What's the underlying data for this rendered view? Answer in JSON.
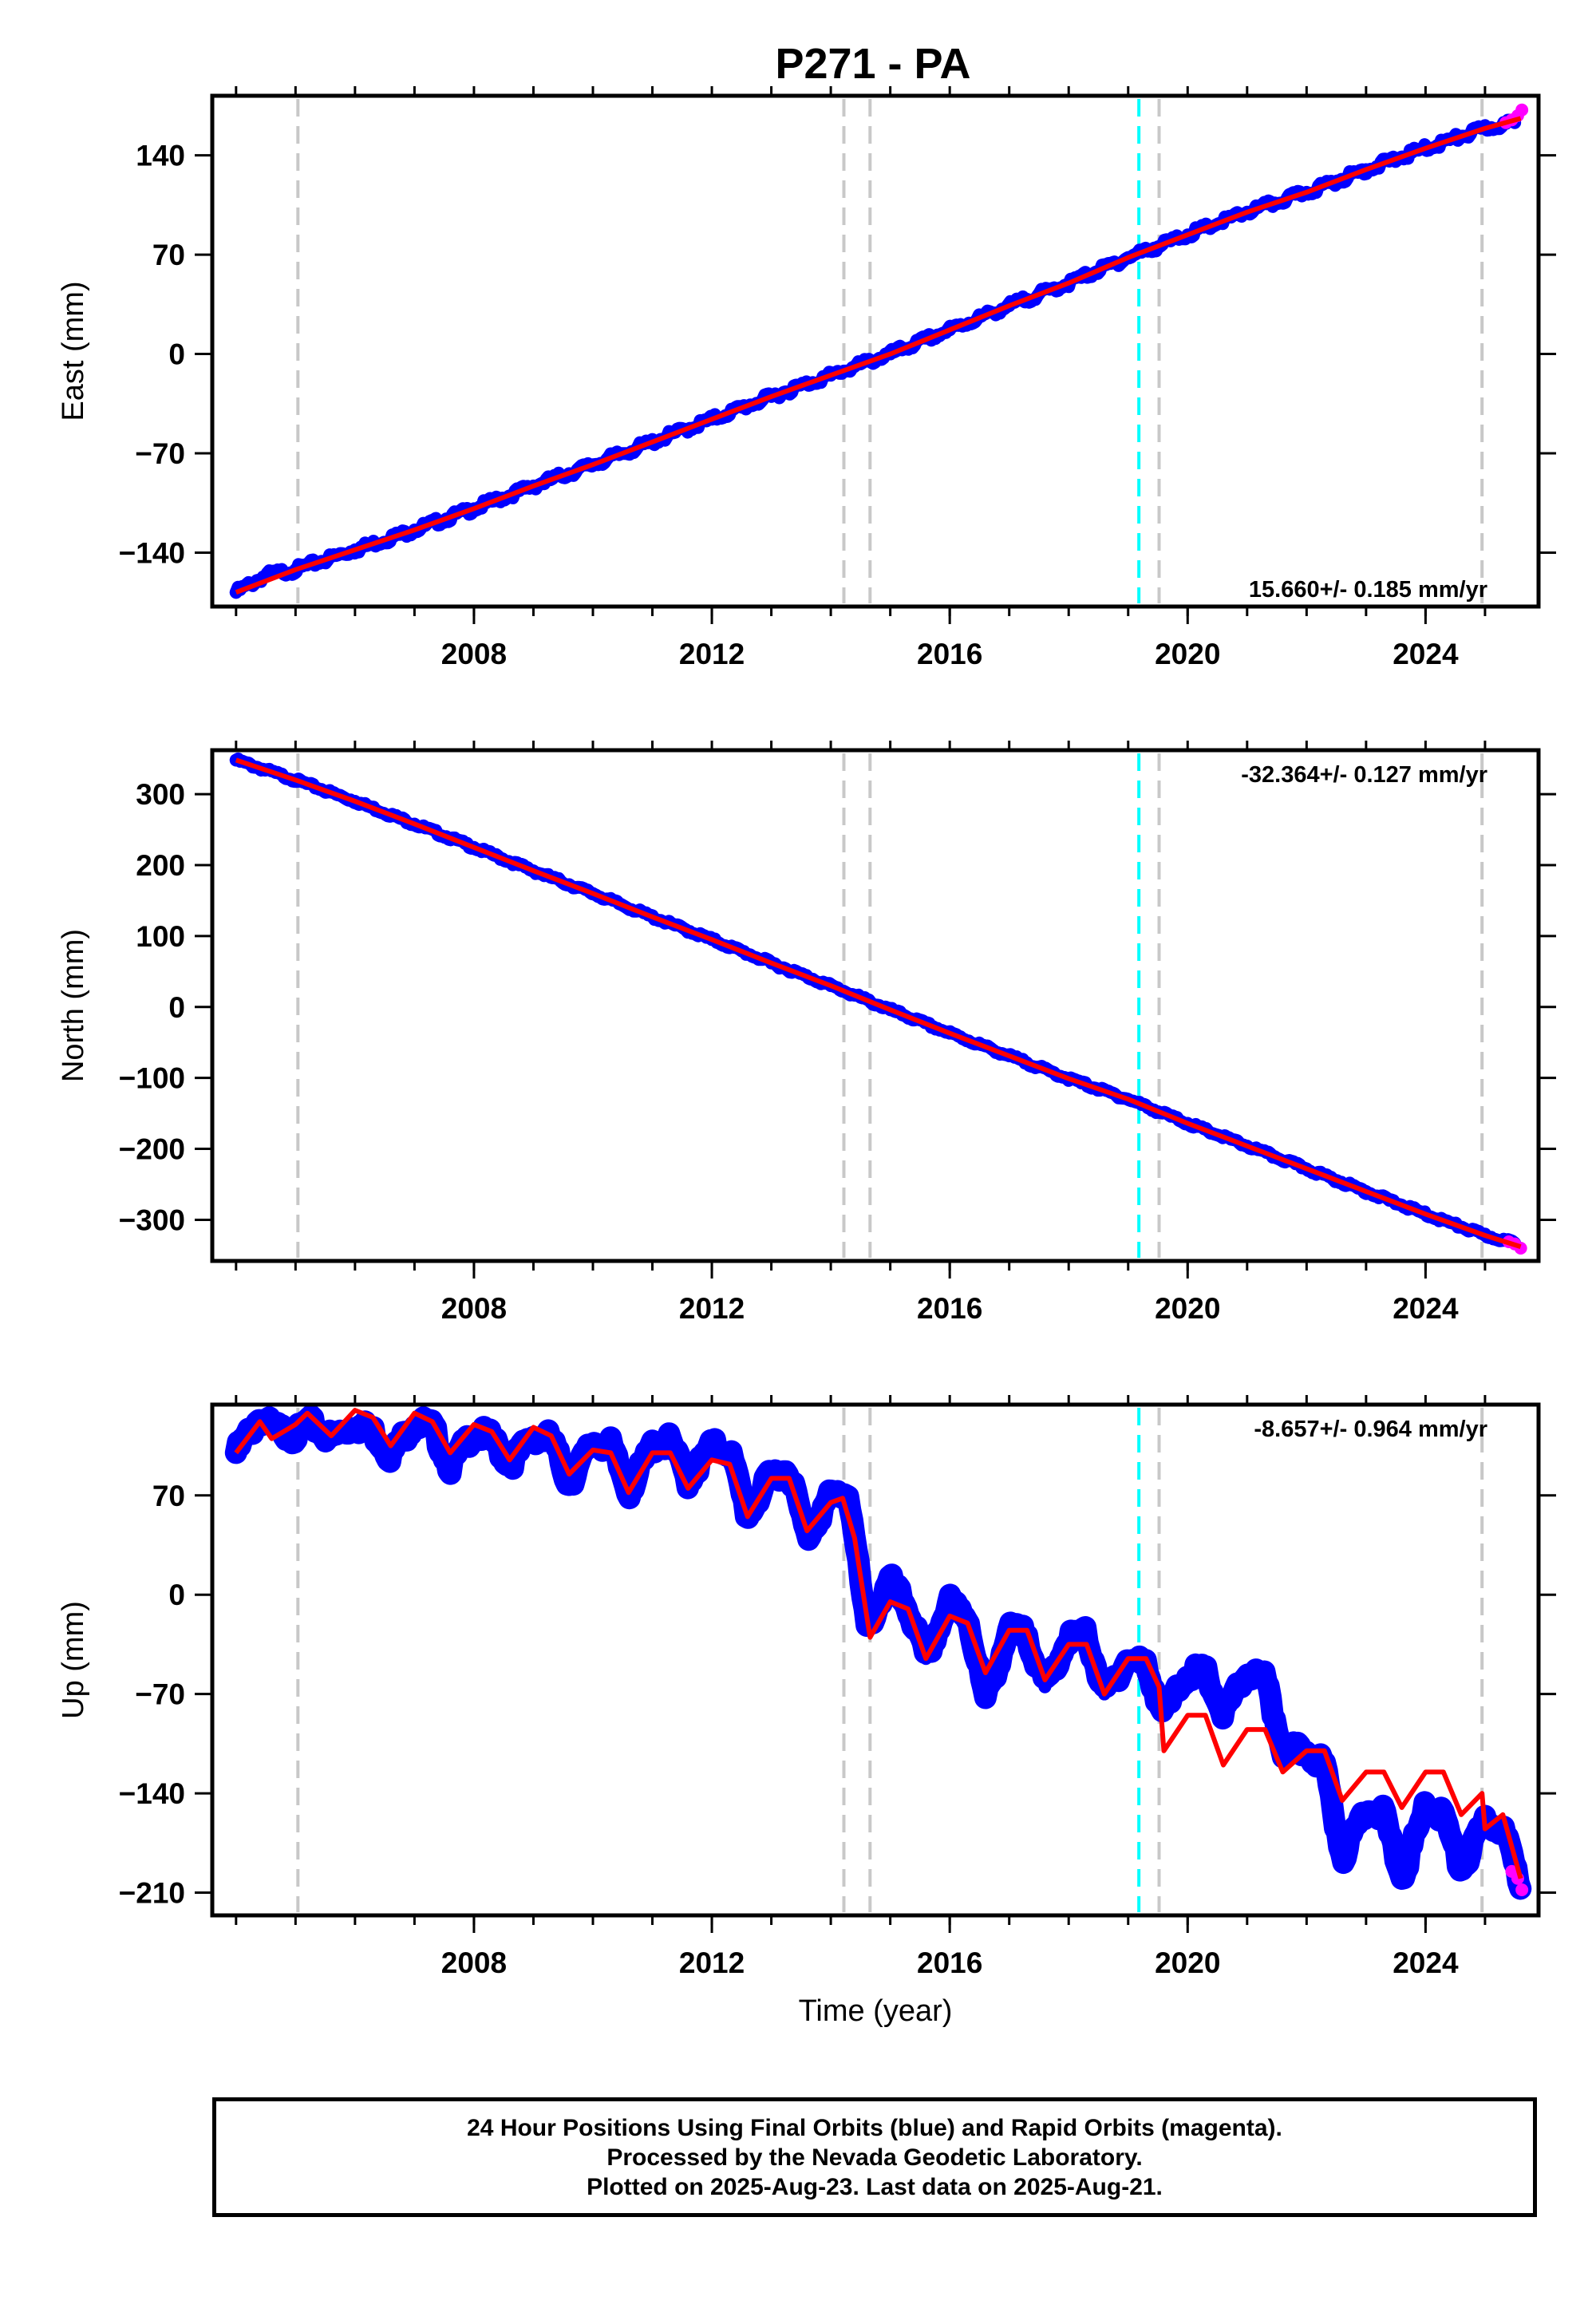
{
  "title": "P271 - PA",
  "footer": {
    "lines": [
      "24 Hour Positions Using Final Orbits (blue) and Rapid Orbits (magenta).",
      "Processed by the Nevada Geodetic Laboratory.",
      "Plotted on 2025-Aug-23. Last data on 2025-Aug-21."
    ]
  },
  "colors": {
    "final_orbits": "#0000ff",
    "rapid_orbits": "#ff00ff",
    "model_fit": "#ff0000",
    "event_line": "#c8c8c8",
    "highlight_event_line": "#00ffff"
  },
  "chart_data": [
    {
      "type": "scatter",
      "ylabel": "East (mm)",
      "xlabel": "",
      "xlim": [
        2003.6,
        2025.9
      ],
      "ylim": [
        -178,
        182
      ],
      "x_ticks": [
        "2008",
        "2012",
        "2016",
        "2020",
        "2024"
      ],
      "y_ticks": [
        "140",
        "70",
        "0",
        "−70",
        "−140"
      ],
      "y_tick_values": [
        140,
        70,
        0,
        -70,
        -140
      ],
      "rate_label": "15.660+/- 0.185 mm/yr",
      "rate_position": "bottom-right",
      "event_lines": [
        2005.04,
        2014.22,
        2014.66,
        2019.52,
        2024.95
      ],
      "highlight_event_lines": [
        2019.18
      ],
      "series": [
        {
          "name": "Final Orbits",
          "color": "#0000ff",
          "x": [
            2004.0,
            2004.5,
            2005.0,
            2006.0,
            2007.0,
            2008.0,
            2009.0,
            2010.0,
            2011.0,
            2012.0,
            2013.0,
            2014.0,
            2015.0,
            2016.0,
            2017.0,
            2018.0,
            2019.0,
            2020.0,
            2021.0,
            2022.0,
            2023.0,
            2024.0,
            2025.0,
            2025.5
          ],
          "y": [
            -168,
            -156,
            -152,
            -138,
            -124,
            -109,
            -93,
            -78,
            -62,
            -46,
            -30,
            -15,
            0,
            17,
            34,
            50,
            68,
            84,
            100,
            114,
            130,
            145,
            159,
            163
          ]
        },
        {
          "name": "Rapid Orbits",
          "color": "#ff00ff",
          "x": [
            2025.35,
            2025.45,
            2025.55,
            2025.62
          ],
          "y": [
            163,
            165,
            168,
            172
          ]
        },
        {
          "name": "Model fit",
          "color": "#ff0000",
          "x": [
            2004.0,
            2005.0,
            2006.0,
            2007.0,
            2008.0,
            2009.0,
            2010.0,
            2011.0,
            2012.0,
            2013.0,
            2014.0,
            2015.0,
            2016.0,
            2017.0,
            2018.0,
            2019.0,
            2020.0,
            2021.0,
            2022.0,
            2023.0,
            2024.0,
            2025.0,
            2025.6
          ],
          "y": [
            -168,
            -152,
            -138,
            -124,
            -109,
            -93,
            -78,
            -62,
            -46,
            -30,
            -15,
            0,
            17,
            34,
            50,
            68,
            84,
            100,
            114,
            130,
            145,
            159,
            166
          ]
        }
      ]
    },
    {
      "type": "scatter",
      "ylabel": "North (mm)",
      "xlabel": "",
      "xlim": [
        2003.6,
        2025.9
      ],
      "ylim": [
        -358,
        362
      ],
      "x_ticks": [
        "2008",
        "2012",
        "2016",
        "2020",
        "2024"
      ],
      "y_ticks": [
        "300",
        "200",
        "100",
        "0",
        "−100",
        "−200",
        "−300"
      ],
      "y_tick_values": [
        300,
        200,
        100,
        0,
        -100,
        -200,
        -300
      ],
      "rate_label": "-32.364+/- 0.127 mm/yr",
      "rate_position": "top-right",
      "event_lines": [
        2005.04,
        2014.22,
        2014.66,
        2019.52,
        2024.95
      ],
      "highlight_event_lines": [
        2019.18
      ],
      "series": [
        {
          "name": "Final Orbits",
          "color": "#0000ff",
          "x": [
            2004.0,
            2005.0,
            2006.0,
            2007.0,
            2008.0,
            2009.0,
            2010.0,
            2011.0,
            2012.0,
            2013.0,
            2014.0,
            2015.0,
            2016.0,
            2017.0,
            2018.0,
            2019.0,
            2020.0,
            2021.0,
            2022.0,
            2023.0,
            2024.0,
            2025.0,
            2025.5
          ],
          "y": [
            348,
            320,
            290,
            258,
            225,
            192,
            160,
            127,
            95,
            62,
            30,
            -4,
            -37,
            -69,
            -101,
            -130,
            -164,
            -196,
            -228,
            -260,
            -292,
            -322,
            -333
          ]
        },
        {
          "name": "Rapid Orbits",
          "color": "#ff00ff",
          "x": [
            2025.4,
            2025.5,
            2025.6
          ],
          "y": [
            -331,
            -334,
            -340
          ]
        },
        {
          "name": "Model fit",
          "color": "#ff0000",
          "x": [
            2004.0,
            2005.0,
            2006.0,
            2007.0,
            2008.0,
            2009.0,
            2010.0,
            2011.0,
            2012.0,
            2013.0,
            2014.0,
            2015.0,
            2016.0,
            2017.0,
            2018.0,
            2019.0,
            2020.0,
            2021.0,
            2022.0,
            2023.0,
            2024.0,
            2025.0,
            2025.6
          ],
          "y": [
            348,
            320,
            290,
            258,
            225,
            192,
            160,
            127,
            95,
            62,
            30,
            -4,
            -37,
            -69,
            -101,
            -130,
            -164,
            -196,
            -228,
            -260,
            -292,
            -322,
            -338
          ]
        }
      ]
    },
    {
      "type": "scatter",
      "ylabel": "Up (mm)",
      "xlabel": "Time (year)",
      "xlim": [
        2003.6,
        2025.9
      ],
      "ylim": [
        -226,
        134
      ],
      "x_ticks": [
        "2008",
        "2012",
        "2016",
        "2020",
        "2024"
      ],
      "y_ticks": [
        "70",
        "0",
        "−70",
        "−140",
        "−210"
      ],
      "y_tick_values": [
        70,
        0,
        -70,
        -140,
        -210
      ],
      "rate_label": "-8.657+/- 0.964 mm/yr",
      "rate_position": "top-right",
      "event_lines": [
        2005.04,
        2014.22,
        2014.66,
        2019.52,
        2024.95
      ],
      "highlight_event_lines": [
        2019.18
      ],
      "series": [
        {
          "name": "Final Orbits",
          "color": "#0000ff",
          "x": [
            2004.0,
            2004.4,
            2004.6,
            2005.0,
            2005.2,
            2005.6,
            2006.0,
            2006.3,
            2006.6,
            2007.0,
            2007.3,
            2007.6,
            2008.0,
            2008.3,
            2008.6,
            2009.0,
            2009.3,
            2009.6,
            2010.0,
            2010.3,
            2010.6,
            2011.0,
            2011.3,
            2011.6,
            2012.0,
            2012.3,
            2012.6,
            2013.0,
            2013.3,
            2013.6,
            2014.0,
            2014.3,
            2014.6,
            2015.0,
            2015.3,
            2015.6,
            2016.0,
            2016.3,
            2016.6,
            2017.0,
            2017.3,
            2017.6,
            2018.0,
            2018.3,
            2018.6,
            2019.0,
            2019.3,
            2019.6,
            2020.0,
            2020.3,
            2020.6,
            2021.0,
            2021.3,
            2021.6,
            2022.0,
            2022.3,
            2022.6,
            2023.0,
            2023.3,
            2023.6,
            2024.0,
            2024.3,
            2024.6,
            2025.0,
            2025.3,
            2025.6
          ],
          "y": [
            100,
            125,
            118,
            112,
            122,
            110,
            120,
            115,
            98,
            122,
            118,
            90,
            115,
            110,
            92,
            112,
            110,
            78,
            108,
            105,
            72,
            105,
            108,
            80,
            105,
            102,
            55,
            85,
            88,
            40,
            70,
            72,
            -25,
            10,
            -10,
            -45,
            -5,
            -15,
            -75,
            -25,
            -28,
            -65,
            -30,
            -28,
            -70,
            -45,
            -50,
            -85,
            -55,
            -55,
            -85,
            -55,
            -60,
            -110,
            -110,
            -120,
            -185,
            -150,
            -155,
            -200,
            -150,
            -155,
            -195,
            -160,
            -165,
            -205
          ]
        },
        {
          "name": "Rapid Orbits",
          "color": "#ff00ff",
          "x": [
            2025.45,
            2025.55,
            2025.62
          ],
          "y": [
            -195,
            -200,
            -208
          ]
        },
        {
          "name": "Model fit",
          "color": "#ff0000",
          "x": [
            2004.0,
            2004.4,
            2004.6,
            2005.0,
            2005.2,
            2005.6,
            2006.0,
            2006.3,
            2006.6,
            2007.0,
            2007.3,
            2007.6,
            2008.0,
            2008.3,
            2008.6,
            2009.0,
            2009.3,
            2009.6,
            2010.0,
            2010.3,
            2010.6,
            2011.0,
            2011.3,
            2011.6,
            2012.0,
            2012.3,
            2012.6,
            2013.0,
            2013.3,
            2013.6,
            2014.0,
            2014.2,
            2014.4,
            2014.66,
            2015.0,
            2015.3,
            2015.6,
            2016.0,
            2016.3,
            2016.6,
            2017.0,
            2017.3,
            2017.6,
            2018.0,
            2018.3,
            2018.6,
            2019.0,
            2019.3,
            2019.52,
            2019.6,
            2020.0,
            2020.3,
            2020.6,
            2021.0,
            2021.3,
            2021.6,
            2022.0,
            2022.3,
            2022.6,
            2023.0,
            2023.3,
            2023.6,
            2024.0,
            2024.3,
            2024.6,
            2024.95,
            2025.0,
            2025.3,
            2025.6
          ],
          "y": [
            100,
            122,
            110,
            120,
            128,
            112,
            130,
            125,
            105,
            128,
            122,
            100,
            120,
            115,
            95,
            118,
            112,
            85,
            102,
            100,
            72,
            100,
            100,
            75,
            95,
            92,
            55,
            82,
            82,
            45,
            65,
            68,
            40,
            -30,
            -5,
            -10,
            -45,
            -15,
            -20,
            -55,
            -25,
            -25,
            -60,
            -35,
            -35,
            -70,
            -45,
            -45,
            -65,
            -110,
            -85,
            -85,
            -120,
            -95,
            -95,
            -125,
            -110,
            -110,
            -145,
            -125,
            -125,
            -150,
            -125,
            -125,
            -155,
            -140,
            -165,
            -155,
            -200
          ]
        }
      ]
    }
  ]
}
